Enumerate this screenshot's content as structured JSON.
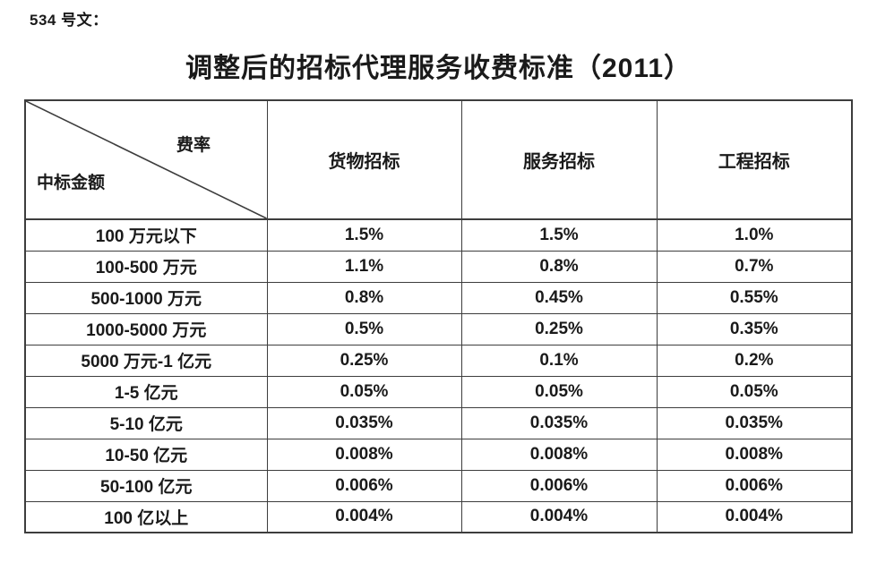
{
  "doc_label": "534 号文：",
  "title": "调整后的招标代理服务收费标准（2011）",
  "table": {
    "corner": {
      "top_right": "费率",
      "bottom_left": "中标金额"
    },
    "columns": [
      "货物招标",
      "服务招标",
      "工程招标"
    ],
    "rows": [
      {
        "label": "100 万元以下",
        "values": [
          "1.5%",
          "1.5%",
          "1.0%"
        ]
      },
      {
        "label": "100-500 万元",
        "values": [
          "1.1%",
          "0.8%",
          "0.7%"
        ]
      },
      {
        "label": "500-1000 万元",
        "values": [
          "0.8%",
          "0.45%",
          "0.55%"
        ]
      },
      {
        "label": "1000-5000 万元",
        "values": [
          "0.5%",
          "0.25%",
          "0.35%"
        ]
      },
      {
        "label": "5000 万元-1 亿元",
        "values": [
          "0.25%",
          "0.1%",
          "0.2%"
        ]
      },
      {
        "label": "1-5 亿元",
        "values": [
          "0.05%",
          "0.05%",
          "0.05%"
        ]
      },
      {
        "label": "5-10 亿元",
        "values": [
          "0.035%",
          "0.035%",
          "0.035%"
        ]
      },
      {
        "label": "10-50 亿元",
        "values": [
          "0.008%",
          "0.008%",
          "0.008%"
        ]
      },
      {
        "label": "50-100 亿元",
        "values": [
          "0.006%",
          "0.006%",
          "0.006%"
        ]
      },
      {
        "label": "100 亿以上",
        "values": [
          "0.004%",
          "0.004%",
          "0.004%"
        ]
      }
    ]
  },
  "colors": {
    "text": "#1a1a1a",
    "border": "#3d3d3d",
    "background": "#ffffff"
  }
}
